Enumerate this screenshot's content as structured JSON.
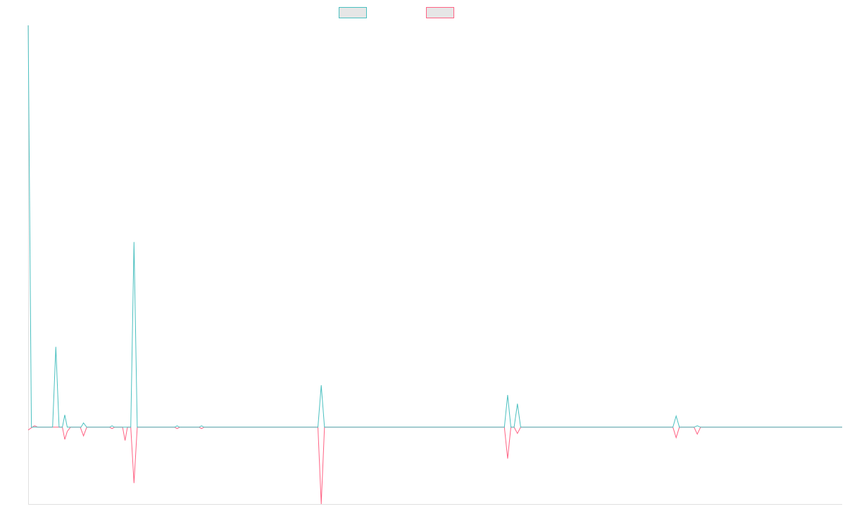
{
  "chart_data": {
    "type": "line",
    "title": "",
    "xlabel": "",
    "ylabel": "",
    "grid": false,
    "legend_position": "top-center",
    "x_range": [
      0,
      1000
    ],
    "ylim": [
      -2.2,
      11.5
    ],
    "series": [
      {
        "color": "#4bc0c0",
        "legend_fill": "#e6e6e6",
        "points": [
          [
            0,
            11.5
          ],
          [
            4,
            0
          ],
          [
            30,
            0
          ],
          [
            34,
            2.3
          ],
          [
            38,
            0
          ],
          [
            42,
            0
          ],
          [
            45,
            0.35
          ],
          [
            48,
            0
          ],
          [
            65,
            0
          ],
          [
            68,
            0.12
          ],
          [
            72,
            0
          ],
          [
            100,
            0
          ],
          [
            103,
            0.04
          ],
          [
            106,
            0
          ],
          [
            126,
            0
          ],
          [
            130,
            5.3
          ],
          [
            134,
            0
          ],
          [
            180,
            0
          ],
          [
            183,
            0.04
          ],
          [
            186,
            0
          ],
          [
            210,
            0
          ],
          [
            213,
            0.04
          ],
          [
            216,
            0
          ],
          [
            356,
            0
          ],
          [
            360,
            1.2
          ],
          [
            364,
            0
          ],
          [
            585,
            0
          ],
          [
            589,
            0.92
          ],
          [
            593,
            0
          ],
          [
            597,
            0
          ],
          [
            601,
            0.67
          ],
          [
            605,
            0
          ],
          [
            792,
            0
          ],
          [
            796,
            0.32
          ],
          [
            800,
            0
          ],
          [
            818,
            0
          ],
          [
            822,
            0.04
          ],
          [
            826,
            0
          ],
          [
            1000,
            0
          ]
        ]
      },
      {
        "color": "#ff6384",
        "legend_fill": "#e6e6e6",
        "points": [
          [
            0,
            -0.08
          ],
          [
            5,
            0
          ],
          [
            8,
            0.04
          ],
          [
            12,
            0
          ],
          [
            42,
            0
          ],
          [
            45,
            -0.35
          ],
          [
            48,
            -0.12
          ],
          [
            52,
            0
          ],
          [
            64,
            0
          ],
          [
            68,
            -0.25
          ],
          [
            72,
            0
          ],
          [
            100,
            0
          ],
          [
            103,
            -0.04
          ],
          [
            106,
            0
          ],
          [
            116,
            0
          ],
          [
            119,
            -0.38
          ],
          [
            122,
            0
          ],
          [
            126,
            0
          ],
          [
            130,
            -1.6
          ],
          [
            134,
            0
          ],
          [
            180,
            0
          ],
          [
            183,
            -0.04
          ],
          [
            186,
            0
          ],
          [
            210,
            0
          ],
          [
            213,
            -0.04
          ],
          [
            216,
            0
          ],
          [
            356,
            0
          ],
          [
            360,
            -2.2
          ],
          [
            364,
            0
          ],
          [
            585,
            0
          ],
          [
            589,
            -0.9
          ],
          [
            593,
            0
          ],
          [
            597,
            0
          ],
          [
            601,
            -0.18
          ],
          [
            605,
            0
          ],
          [
            792,
            0
          ],
          [
            796,
            -0.3
          ],
          [
            800,
            0
          ],
          [
            818,
            0
          ],
          [
            822,
            -0.2
          ],
          [
            826,
            0
          ],
          [
            1000,
            0
          ]
        ]
      }
    ]
  }
}
